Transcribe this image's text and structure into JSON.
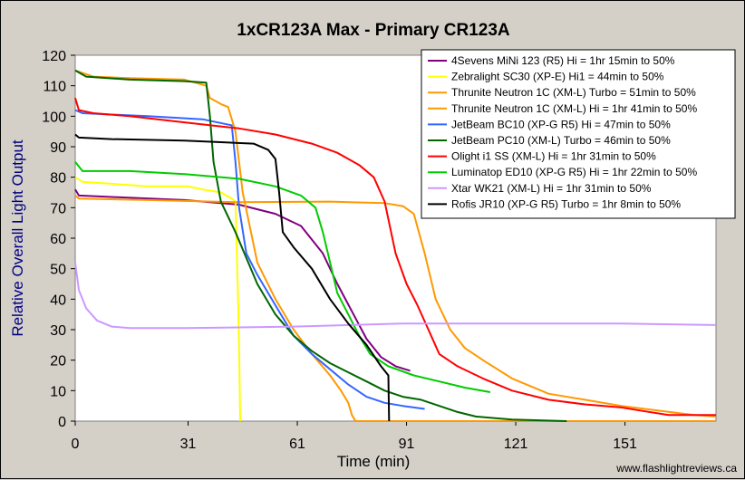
{
  "chart_data": {
    "type": "line",
    "title": "1xCR123A Max - Primary CR123A",
    "xlabel": "Time (min)",
    "ylabel": "Relative Overall Light Output",
    "xlim": [
      0,
      176
    ],
    "ylim": [
      0,
      120
    ],
    "xticks": [
      0,
      31,
      61,
      91,
      121,
      151
    ],
    "yticks": [
      0,
      10,
      20,
      30,
      40,
      50,
      60,
      70,
      80,
      90,
      100,
      110,
      120
    ],
    "grid": false,
    "legend_position": "top-right",
    "credit": "www.flashlightreviews.ca",
    "series": [
      {
        "name": "4Sevens MiNi 123 (R5) Hi = 1hr 15min to 50%",
        "color": "#800080",
        "points": [
          [
            0,
            76
          ],
          [
            1,
            74
          ],
          [
            10,
            73.5
          ],
          [
            30,
            72.5
          ],
          [
            45,
            71
          ],
          [
            55,
            68
          ],
          [
            62,
            64
          ],
          [
            68,
            55
          ],
          [
            72,
            45
          ],
          [
            76,
            36
          ],
          [
            80,
            27
          ],
          [
            84,
            21
          ],
          [
            88,
            18
          ],
          [
            92,
            16.5
          ]
        ]
      },
      {
        "name": "Zebralight SC30 (XP-E) Hi1 = 44min to 50%",
        "color": "#ffff00",
        "points": [
          [
            0,
            80
          ],
          [
            2,
            78.5
          ],
          [
            20,
            77
          ],
          [
            31,
            77
          ],
          [
            35,
            76
          ],
          [
            40,
            75
          ],
          [
            43,
            73
          ],
          [
            44,
            72
          ],
          [
            44.5,
            50
          ],
          [
            45,
            25
          ],
          [
            45.3,
            0
          ]
        ]
      },
      {
        "name": "Thrunite Neutron 1C (XM-L) Turbo = 51min to 50%",
        "color": "#ff9900",
        "points": [
          [
            0,
            115
          ],
          [
            5,
            113
          ],
          [
            15,
            112.5
          ],
          [
            30,
            112
          ],
          [
            36,
            110
          ],
          [
            37,
            106
          ],
          [
            40,
            104
          ],
          [
            42,
            103
          ],
          [
            44,
            95
          ],
          [
            46,
            75
          ],
          [
            50,
            52
          ],
          [
            55,
            40
          ],
          [
            60,
            30
          ],
          [
            65,
            22
          ],
          [
            70,
            15
          ],
          [
            73,
            10
          ],
          [
            75,
            6
          ],
          [
            76,
            2
          ],
          [
            77,
            0
          ],
          [
            176,
            0
          ]
        ]
      },
      {
        "name": "Thrunite Neutron 1C (XM-L) Hi = 1hr 41min to 50%",
        "color": "#ff9900",
        "points": [
          [
            0,
            74
          ],
          [
            1,
            73
          ],
          [
            20,
            72.5
          ],
          [
            45,
            71.8
          ],
          [
            70,
            72
          ],
          [
            85,
            71.5
          ],
          [
            90,
            70.5
          ],
          [
            93,
            68
          ],
          [
            96,
            55
          ],
          [
            99,
            40
          ],
          [
            103,
            30
          ],
          [
            107,
            24
          ],
          [
            112,
            20
          ],
          [
            120,
            14
          ],
          [
            130,
            9
          ],
          [
            140,
            7
          ],
          [
            150,
            5
          ],
          [
            160,
            3.5
          ],
          [
            170,
            2
          ],
          [
            176,
            1.5
          ]
        ]
      },
      {
        "name": "JetBeam BC10 (XP-G R5) Hi = 47min to 50%",
        "color": "#3366ff",
        "points": [
          [
            0,
            102
          ],
          [
            2,
            101
          ],
          [
            20,
            100
          ],
          [
            35,
            99
          ],
          [
            43,
            97
          ],
          [
            44,
            85
          ],
          [
            45,
            70
          ],
          [
            47,
            55
          ],
          [
            50,
            48
          ],
          [
            55,
            38
          ],
          [
            60,
            28
          ],
          [
            65,
            22
          ],
          [
            70,
            17
          ],
          [
            75,
            12
          ],
          [
            80,
            8
          ],
          [
            85,
            6
          ],
          [
            90,
            5
          ],
          [
            96,
            4
          ]
        ]
      },
      {
        "name": "JetBeam PC10 (XM-L) Turbo = 46min to 50%",
        "color": "#006600",
        "points": [
          [
            0,
            115
          ],
          [
            3,
            113
          ],
          [
            15,
            112
          ],
          [
            30,
            111.5
          ],
          [
            36,
            111
          ],
          [
            37,
            100
          ],
          [
            38,
            85
          ],
          [
            40,
            72
          ],
          [
            44,
            62
          ],
          [
            50,
            45
          ],
          [
            55,
            35
          ],
          [
            60,
            28
          ],
          [
            65,
            23
          ],
          [
            70,
            19
          ],
          [
            75,
            16
          ],
          [
            80,
            13
          ],
          [
            85,
            10
          ],
          [
            90,
            8
          ],
          [
            95,
            7
          ],
          [
            100,
            5
          ],
          [
            105,
            3
          ],
          [
            110,
            1.5
          ],
          [
            115,
            1
          ],
          [
            120,
            0.5
          ],
          [
            135,
            0
          ]
        ]
      },
      {
        "name": "Olight i1 SS (XM-L) Hi = 1hr 31min to 50%",
        "color": "#ff0000",
        "points": [
          [
            0,
            106
          ],
          [
            1,
            102
          ],
          [
            5,
            101
          ],
          [
            15,
            100
          ],
          [
            30,
            98
          ],
          [
            45,
            96
          ],
          [
            55,
            94
          ],
          [
            65,
            91
          ],
          [
            72,
            88
          ],
          [
            78,
            84
          ],
          [
            82,
            80
          ],
          [
            85,
            72
          ],
          [
            88,
            55
          ],
          [
            91,
            45
          ],
          [
            94,
            38
          ],
          [
            97,
            30
          ],
          [
            100,
            22
          ],
          [
            105,
            18
          ],
          [
            112,
            14
          ],
          [
            120,
            10
          ],
          [
            130,
            7
          ],
          [
            140,
            5.5
          ],
          [
            150,
            4.5
          ],
          [
            155,
            3.5
          ],
          [
            163,
            2
          ],
          [
            170,
            2
          ],
          [
            176,
            2
          ]
        ]
      },
      {
        "name": "Luminatop ED10 (XP-G R5) Hi = 1hr 22min to 50%",
        "color": "#00cc00",
        "points": [
          [
            0,
            85
          ],
          [
            2,
            82
          ],
          [
            15,
            82
          ],
          [
            30,
            81
          ],
          [
            45,
            79.5
          ],
          [
            55,
            77
          ],
          [
            62,
            74
          ],
          [
            66,
            70
          ],
          [
            68,
            62
          ],
          [
            70,
            52
          ],
          [
            72,
            42
          ],
          [
            75,
            35
          ],
          [
            78,
            28
          ],
          [
            81,
            22
          ],
          [
            86,
            18
          ],
          [
            93,
            15
          ],
          [
            100,
            13
          ],
          [
            107,
            11
          ],
          [
            114,
            9.5
          ]
        ]
      },
      {
        "name": "Xtar WK21 (XM-L) Hi = 1hr 31min to 50%",
        "color": "#cc99ff",
        "points": [
          [
            0,
            52
          ],
          [
            1,
            43
          ],
          [
            3,
            37
          ],
          [
            6,
            33
          ],
          [
            10,
            31
          ],
          [
            15,
            30.5
          ],
          [
            30,
            30.5
          ],
          [
            60,
            31
          ],
          [
            90,
            32
          ],
          [
            120,
            32
          ],
          [
            150,
            32
          ],
          [
            176,
            31.5
          ]
        ]
      },
      {
        "name": "Rofis JR10 (XP-G R5) Turbo = 1hr 8min to 50%",
        "color": "#000000",
        "points": [
          [
            0,
            94
          ],
          [
            1,
            93
          ],
          [
            10,
            92.5
          ],
          [
            30,
            92
          ],
          [
            40,
            91.5
          ],
          [
            49,
            91
          ],
          [
            53,
            89
          ],
          [
            55,
            86
          ],
          [
            56,
            75
          ],
          [
            57,
            62
          ],
          [
            60,
            57
          ],
          [
            65,
            50
          ],
          [
            70,
            40
          ],
          [
            75,
            32
          ],
          [
            80,
            25
          ],
          [
            84,
            18
          ],
          [
            86,
            15
          ],
          [
            86.2,
            0
          ]
        ]
      }
    ]
  }
}
